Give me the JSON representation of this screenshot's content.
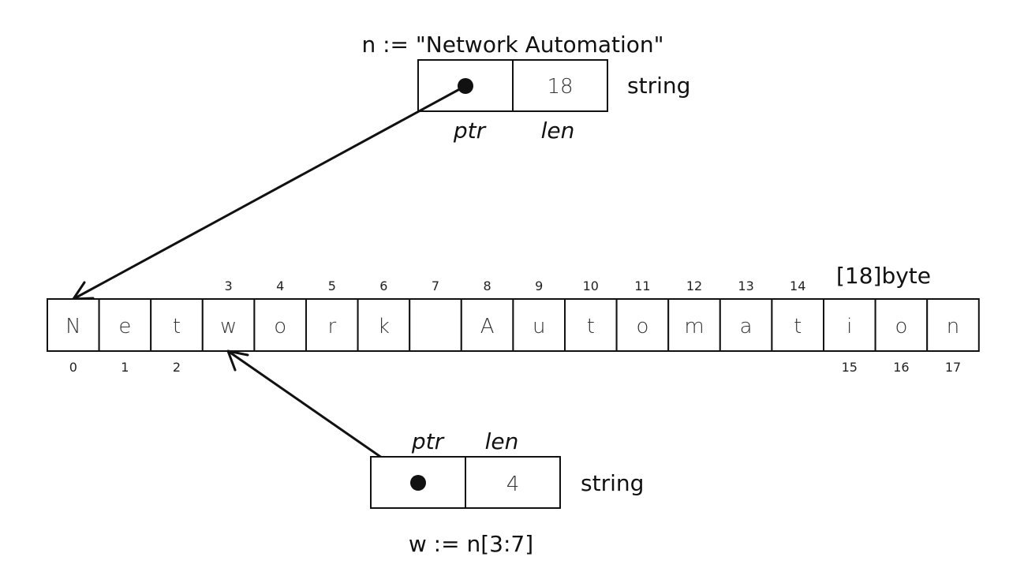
{
  "top_string": {
    "declaration": "n := \"Network Automation\"",
    "len_value": "18",
    "type_label": "string",
    "ptr_label": "ptr",
    "len_label": "len",
    "points_to_index": 0
  },
  "byte_array": {
    "type_label": "[18]byte",
    "cells": [
      "N",
      "e",
      "t",
      "w",
      "o",
      "r",
      "k",
      " ",
      "A",
      "u",
      "t",
      "o",
      "m",
      "a",
      "t",
      "i",
      "o",
      "n"
    ],
    "top_indices": [
      3,
      4,
      5,
      6,
      7,
      8,
      9,
      10,
      11,
      12,
      13,
      14
    ],
    "bottom_indices": [
      0,
      1,
      2,
      15,
      16,
      17
    ]
  },
  "bottom_string": {
    "declaration": "w := n[3:7]",
    "len_value": "4",
    "type_label": "string",
    "ptr_label": "ptr",
    "len_label": "len",
    "points_to_index": 3
  }
}
